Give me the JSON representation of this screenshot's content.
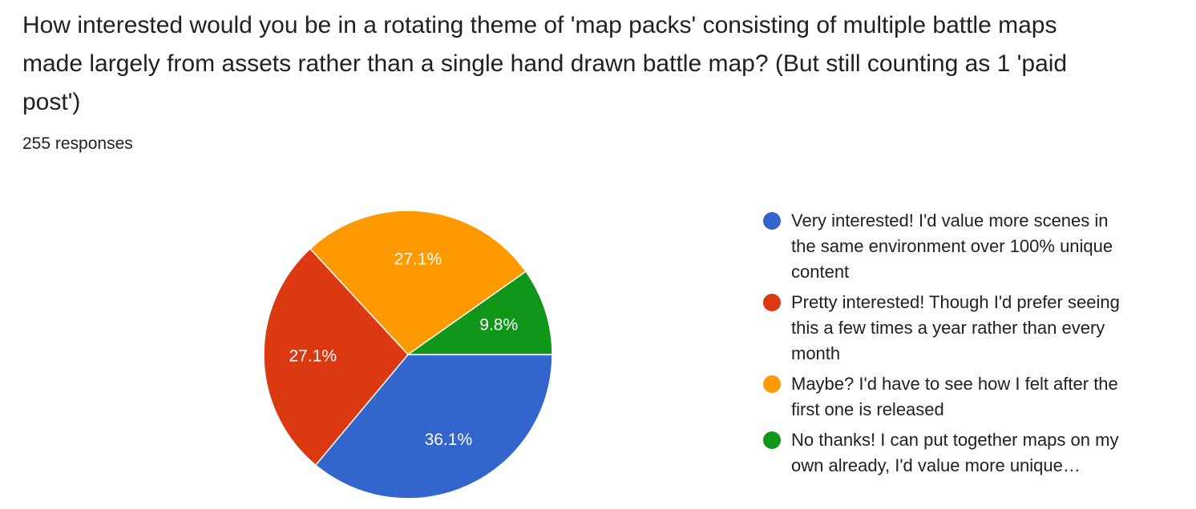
{
  "header": {
    "title": "How interested would you be in a rotating theme of 'map packs' consisting of multiple battle maps made largely from assets rather than a single hand drawn battle map? (But still counting as 1 'paid post')",
    "responses": "255 responses"
  },
  "chart_data": {
    "type": "pie",
    "categories": [
      "Very interested! I'd value more scenes in the same environment over 100% unique content",
      "Pretty interested! Though I'd prefer seeing this a few times a year rather than every month",
      "Maybe? I'd have to see how I felt after the first one is released",
      "No thanks! I can put together maps on my own already, I'd value more unique…"
    ],
    "values": [
      36.1,
      27.1,
      27.1,
      9.8
    ],
    "value_labels": [
      "36.1%",
      "27.1%",
      "27.1%",
      "9.8%"
    ],
    "colors": [
      "#3366cc",
      "#dc3912",
      "#ff9900",
      "#109618"
    ]
  }
}
